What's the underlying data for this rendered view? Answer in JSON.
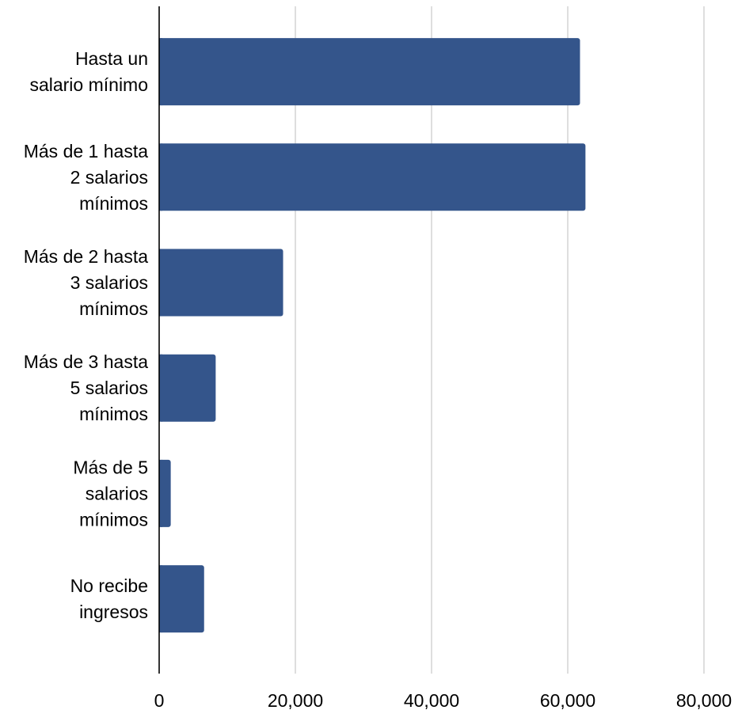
{
  "chart_data": {
    "type": "bar",
    "orientation": "horizontal",
    "categories": [
      [
        "Hasta un",
        "salario mínimo"
      ],
      [
        "Más de 1 hasta",
        "2 salarios",
        "mínimos"
      ],
      [
        "Más de 2 hasta",
        "3 salarios",
        "mínimos"
      ],
      [
        "Más de 3 hasta",
        "5 salarios",
        "mínimos"
      ],
      [
        "Más de 5",
        "salarios",
        "mínimos"
      ],
      [
        "No recibe",
        "ingresos"
      ]
    ],
    "values": [
      61800,
      62600,
      18200,
      8300,
      1700,
      6600
    ],
    "xlim": [
      0,
      80000
    ],
    "ticks": [
      0,
      20000,
      40000,
      60000,
      80000
    ],
    "tick_labels": [
      "0",
      "20,000",
      "40,000",
      "60,000",
      "80,000"
    ],
    "grid": true,
    "bar_color": "#34558b",
    "grid_color": "#cccccc",
    "axis_color": "#000000"
  }
}
